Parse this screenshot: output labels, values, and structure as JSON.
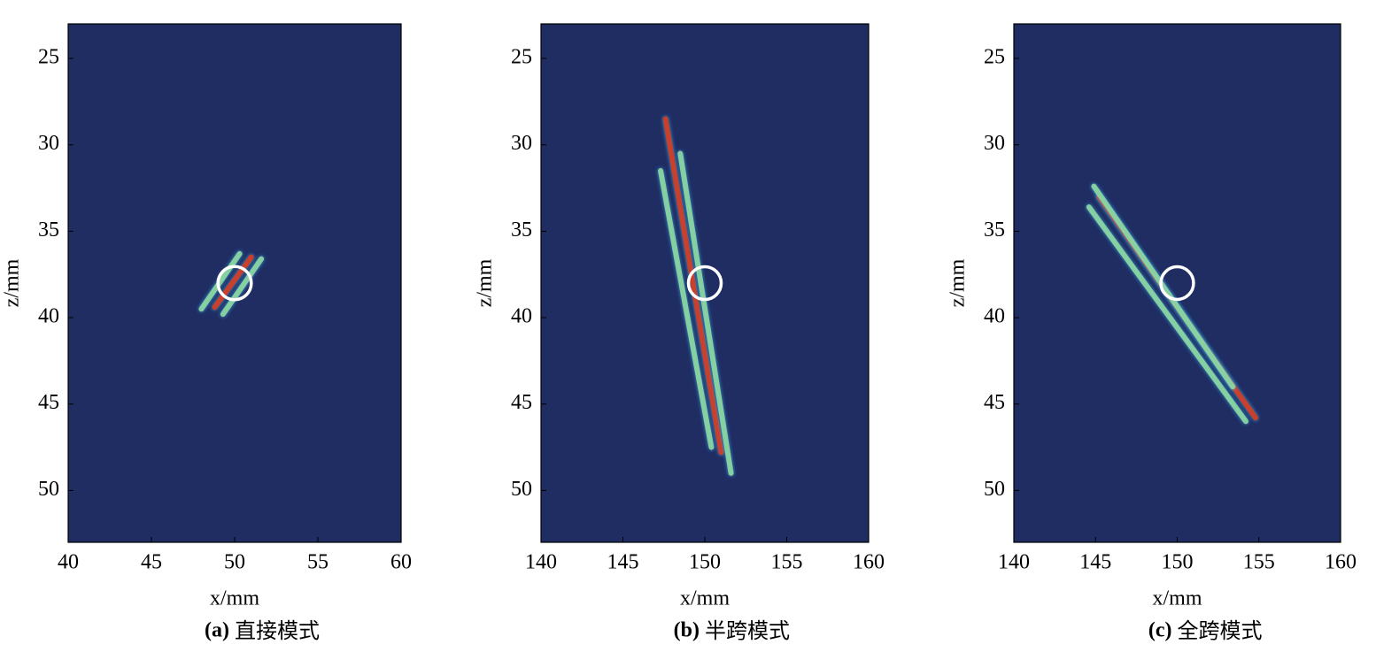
{
  "chart_data": [
    {
      "type": "heatmap",
      "label": "(a)",
      "caption": "直接模式",
      "xlabel": "x/mm",
      "ylabel": "z/mm",
      "xlim": [
        40,
        60
      ],
      "ylim": [
        53,
        23
      ],
      "xticks": [
        40,
        45,
        50,
        55,
        60
      ],
      "yticks": [
        25,
        30,
        35,
        40,
        45,
        50
      ],
      "background": "#1f2d63",
      "streaks": [
        {
          "x": [
            48.0,
            50.3
          ],
          "y": [
            39.5,
            36.3
          ],
          "color": "#8fd8a0"
        },
        {
          "x": [
            48.8,
            51.0
          ],
          "y": [
            39.4,
            36.5
          ],
          "color": "#d83a1e"
        },
        {
          "x": [
            49.3,
            51.6
          ],
          "y": [
            39.8,
            36.6
          ],
          "color": "#8fd8a0"
        }
      ],
      "marker": {
        "x": 50,
        "y": 38,
        "radius": 1,
        "color": "#ffffff"
      }
    },
    {
      "type": "heatmap",
      "label": "(b)",
      "caption": "半跨模式",
      "xlabel": "x/mm",
      "ylabel": "z/mm",
      "xlim": [
        140,
        160
      ],
      "ylim": [
        53,
        23
      ],
      "xticks": [
        140,
        145,
        150,
        155,
        160
      ],
      "yticks": [
        25,
        30,
        35,
        40,
        45,
        50
      ],
      "background": "#1f2d63",
      "streaks": [
        {
          "x": [
            147.3,
            150.4
          ],
          "y": [
            31.5,
            47.5
          ],
          "color": "#8fd8a0"
        },
        {
          "x": [
            147.6,
            151.0
          ],
          "y": [
            28.5,
            47.8
          ],
          "color": "#d83a1e"
        },
        {
          "x": [
            148.5,
            151.6
          ],
          "y": [
            30.5,
            49.0
          ],
          "color": "#8fd8a0"
        }
      ],
      "marker": {
        "x": 150,
        "y": 38,
        "radius": 1,
        "color": "#ffffff"
      }
    },
    {
      "type": "heatmap",
      "label": "(c)",
      "caption": "全跨模式",
      "xlabel": "x/mm",
      "ylabel": "z/mm",
      "xlim": [
        140,
        160
      ],
      "ylim": [
        53,
        23
      ],
      "xticks": [
        140,
        145,
        150,
        155,
        160
      ],
      "yticks": [
        25,
        30,
        35,
        40,
        45,
        50
      ],
      "background": "#1f2d63",
      "streaks": [
        {
          "x": [
            144.6,
            154.2
          ],
          "y": [
            33.6,
            46.0
          ],
          "color": "#8fd8a0"
        },
        {
          "x": [
            145.2,
            154.8
          ],
          "y": [
            33.0,
            45.8
          ],
          "color": "#d83a1e"
        },
        {
          "x": [
            144.9,
            153.4
          ],
          "y": [
            32.4,
            44.0
          ],
          "color": "#8fd8a0"
        }
      ],
      "marker": {
        "x": 150,
        "y": 38,
        "radius": 1,
        "color": "#ffffff"
      }
    }
  ]
}
